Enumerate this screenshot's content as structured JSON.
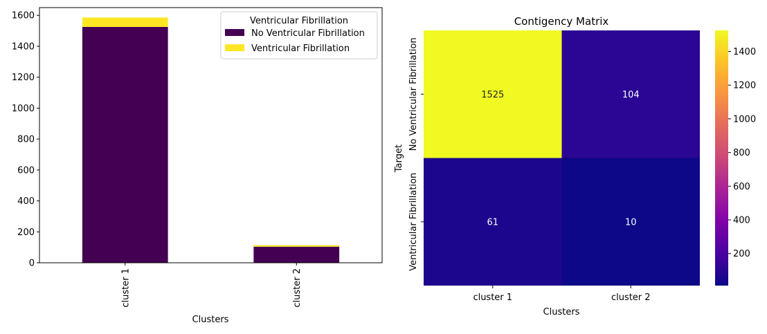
{
  "chart_data": [
    {
      "type": "bar",
      "stacked": true,
      "title": "",
      "xlabel": "Clusters",
      "ylabel": "",
      "categories": [
        "cluster 1",
        "cluster 2"
      ],
      "series": [
        {
          "name": "No Ventricular Fibrillation",
          "values": [
            1525,
            104
          ],
          "color": "#440154"
        },
        {
          "name": "Ventricular Fibrillation",
          "values": [
            61,
            10
          ],
          "color": "#fde725"
        }
      ],
      "ylim": [
        0,
        1650
      ],
      "yticks": [
        0,
        200,
        400,
        600,
        800,
        1000,
        1200,
        1400,
        1600
      ],
      "legend": {
        "title": "Ventricular Fibrillation",
        "placement": "top-right"
      },
      "grid": false
    },
    {
      "type": "heatmap",
      "title": "Contigency Matrix",
      "xlabel": "Clusters",
      "ylabel": "Target",
      "x_categories": [
        "cluster 1",
        "cluster 2"
      ],
      "y_categories": [
        "No Ventricular Fibrillation",
        "Ventricular Fibrillation"
      ],
      "values": [
        [
          1525,
          104
        ],
        [
          61,
          10
        ]
      ],
      "colormap": "plasma",
      "colorbar_range": [
        10,
        1525
      ],
      "colorbar_ticks": [
        200,
        400,
        600,
        800,
        1000,
        1200,
        1400
      ]
    }
  ]
}
